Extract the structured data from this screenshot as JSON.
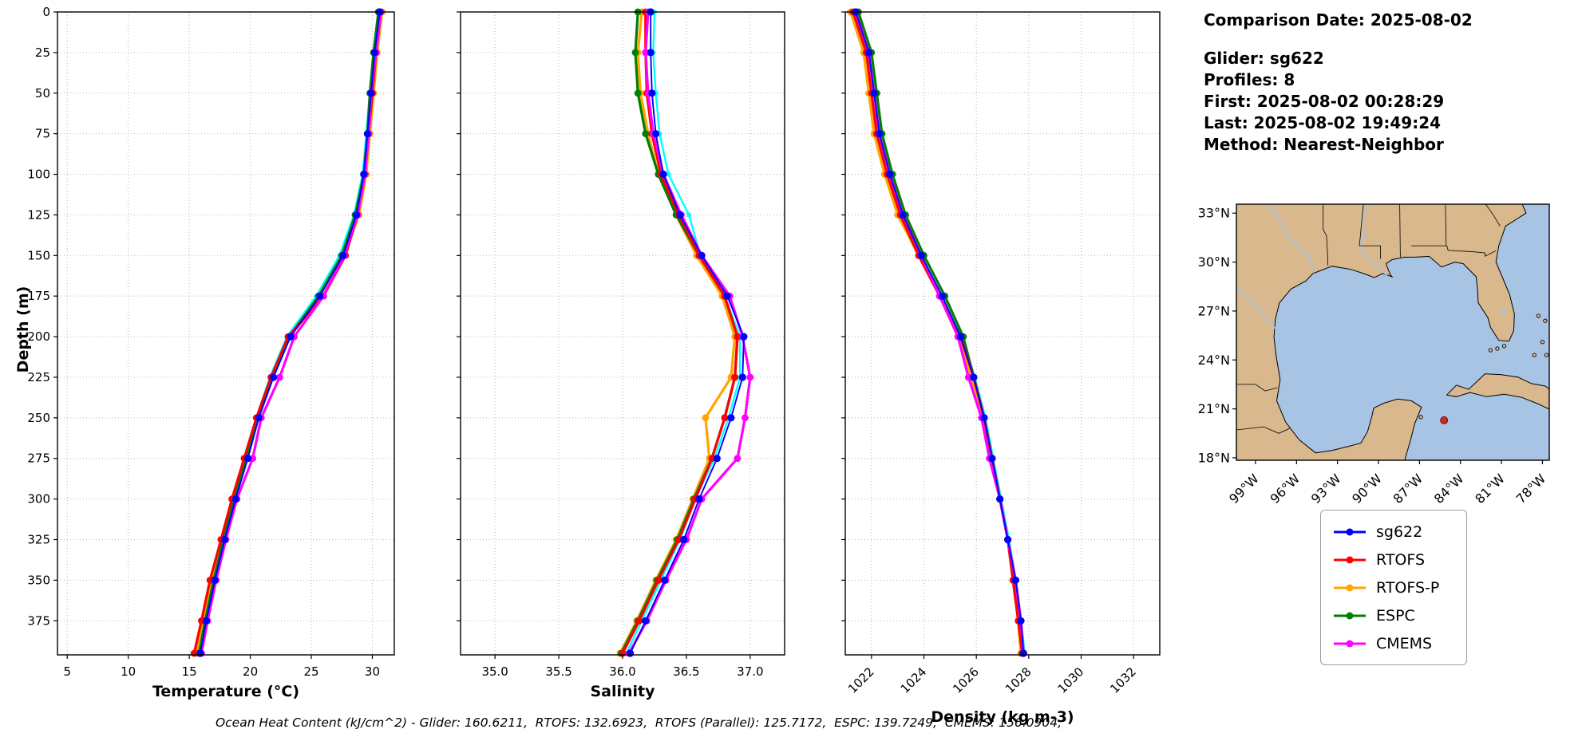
{
  "info": {
    "comparison_date": "Comparison Date: 2025-08-02",
    "glider": "Glider: sg622",
    "profiles": "Profiles: 8",
    "first": "First: 2025-08-02 00:28:29",
    "last": "Last: 2025-08-02 19:49:24",
    "method": "Method: Nearest-Neighbor"
  },
  "axes": {
    "depth_label": "Depth (m)"
  },
  "footer": {
    "text": "Ocean Heat Content (kJ/cm^2) - Glider: 160.6211,  RTOFS: 132.6923,  RTOFS (Parallel): 125.7172,  ESPC: 139.7249,  CMEMS: 156.0904,"
  },
  "legend": {
    "items": [
      {
        "label": "sg622",
        "color": "#0000ff"
      },
      {
        "label": "RTOFS",
        "color": "#ff0000"
      },
      {
        "label": "RTOFS-P",
        "color": "#ffa500"
      },
      {
        "label": "ESPC",
        "color": "#008000"
      },
      {
        "label": "CMEMS",
        "color": "#ff00ff"
      }
    ]
  },
  "map": {
    "water_color": "#a8c4e4",
    "land_color": "#d8b88c",
    "line_color": "#000000",
    "lat_ticks": [
      {
        "v": 33,
        "label": "33°N"
      },
      {
        "v": 30,
        "label": "30°N"
      },
      {
        "v": 27,
        "label": "27°N"
      },
      {
        "v": 24,
        "label": "24°N"
      },
      {
        "v": 21,
        "label": "21°N"
      },
      {
        "v": 18,
        "label": "18°N"
      }
    ],
    "lon_ticks": [
      {
        "v": -99,
        "label": "99°W"
      },
      {
        "v": -96,
        "label": "96°W"
      },
      {
        "v": -93,
        "label": "93°W"
      },
      {
        "v": -90,
        "label": "90°W"
      },
      {
        "v": -87,
        "label": "87°W"
      },
      {
        "v": -84,
        "label": "84°W"
      },
      {
        "v": -81,
        "label": "81°W"
      },
      {
        "v": -78,
        "label": "78°W"
      }
    ],
    "marker": {
      "lon": -85.2,
      "lat": 20.3,
      "color": "#cc2a1e"
    }
  },
  "depth_axis": {
    "ylim": [
      0,
      396
    ],
    "ticks": [
      0,
      25,
      50,
      75,
      100,
      125,
      150,
      175,
      200,
      225,
      250,
      275,
      300,
      325,
      350,
      375
    ],
    "labels": [
      "0",
      "25",
      "50",
      "75",
      "100",
      "125",
      "150",
      "175",
      "200",
      "225",
      "250",
      "275",
      "300",
      "325",
      "350",
      "375"
    ]
  },
  "chart_data": [
    {
      "id": "temperature",
      "type": "line",
      "xlabel": "Temperature (°C)",
      "xlim": [
        4.2,
        31.8
      ],
      "xticks": [
        5,
        10,
        15,
        20,
        25,
        30
      ],
      "xtick_labels": [
        "5",
        "10",
        "15",
        "20",
        "25",
        "30"
      ],
      "depths": [
        0,
        25,
        50,
        75,
        100,
        125,
        150,
        175,
        200,
        225,
        250,
        275,
        300,
        325,
        350,
        375,
        395
      ],
      "series": [
        {
          "name": "glider-profiles",
          "color": "#00ffff",
          "values": [
            30.6,
            30.1,
            29.8,
            29.5,
            29.2,
            28.5,
            27.3,
            25.4,
            23.0,
            21.6,
            20.5,
            19.6,
            18.6,
            17.7,
            16.9,
            16.2,
            15.7
          ]
        },
        {
          "name": "RTOFS-P",
          "color": "#ffa500",
          "values": [
            30.8,
            30.4,
            30.1,
            29.8,
            29.5,
            28.9,
            27.7,
            25.9,
            23.2,
            21.8,
            20.6,
            19.6,
            18.6,
            17.7,
            16.8,
            16.1,
            15.6
          ]
        },
        {
          "name": "ESPC",
          "color": "#008000",
          "values": [
            30.5,
            30.1,
            29.8,
            29.6,
            29.3,
            28.6,
            27.5,
            25.6,
            23.2,
            21.8,
            20.6,
            19.7,
            18.7,
            17.8,
            17.0,
            16.3,
            15.8
          ]
        },
        {
          "name": "RTOFS",
          "color": "#ff0000",
          "values": [
            30.7,
            30.3,
            30.0,
            29.7,
            29.4,
            28.8,
            27.8,
            26.0,
            23.1,
            21.7,
            20.5,
            19.5,
            18.5,
            17.6,
            16.7,
            16.0,
            15.4
          ]
        },
        {
          "name": "CMEMS",
          "color": "#ff00ff",
          "values": [
            30.7,
            30.3,
            29.9,
            29.7,
            29.4,
            28.8,
            27.7,
            26.0,
            23.6,
            22.4,
            20.9,
            20.2,
            18.9,
            18.0,
            17.2,
            16.5,
            16.0
          ]
        },
        {
          "name": "sg622",
          "color": "#0000ff",
          "values": [
            30.6,
            30.2,
            29.9,
            29.6,
            29.3,
            28.7,
            27.6,
            25.7,
            23.3,
            21.9,
            20.7,
            19.8,
            18.8,
            17.9,
            17.1,
            16.4,
            15.9
          ]
        }
      ]
    },
    {
      "id": "salinity",
      "type": "line",
      "xlabel": "Salinity",
      "xlim": [
        34.73,
        37.27
      ],
      "xticks": [
        35.0,
        35.5,
        36.0,
        36.5,
        37.0
      ],
      "xtick_labels": [
        "35.0",
        "35.5",
        "36.0",
        "36.5",
        "37.0"
      ],
      "depths": [
        0,
        25,
        50,
        75,
        100,
        125,
        150,
        175,
        200,
        225,
        250,
        275,
        300,
        325,
        350,
        375,
        395
      ],
      "series": [
        {
          "name": "glider-profiles",
          "color": "#00ffff",
          "values": [
            36.25,
            36.24,
            36.26,
            36.29,
            36.36,
            36.52,
            36.61,
            36.8,
            36.92,
            36.92,
            36.83,
            36.72,
            36.57,
            36.45,
            36.3,
            36.15,
            36.03
          ]
        },
        {
          "name": "RTOFS-P",
          "color": "#ffa500",
          "values": [
            36.15,
            36.12,
            36.14,
            36.2,
            36.28,
            36.42,
            36.58,
            36.78,
            36.88,
            36.85,
            36.65,
            36.68,
            36.55,
            36.42,
            36.26,
            36.11,
            35.98
          ]
        },
        {
          "name": "ESPC",
          "color": "#008000",
          "values": [
            36.12,
            36.1,
            36.12,
            36.18,
            36.28,
            36.42,
            36.6,
            36.8,
            36.9,
            36.88,
            36.8,
            36.7,
            36.56,
            36.43,
            36.27,
            36.12,
            35.99
          ]
        },
        {
          "name": "RTOFS",
          "color": "#ff0000",
          "values": [
            36.18,
            36.18,
            36.19,
            36.23,
            36.3,
            36.44,
            36.6,
            36.8,
            36.9,
            36.88,
            36.8,
            36.7,
            36.57,
            36.44,
            36.28,
            36.13,
            36.0
          ]
        },
        {
          "name": "CMEMS",
          "color": "#ff00ff",
          "values": [
            36.2,
            36.18,
            36.2,
            36.24,
            36.32,
            36.46,
            36.62,
            36.84,
            36.94,
            37.0,
            36.96,
            36.9,
            36.62,
            36.5,
            36.34,
            36.19,
            36.05
          ]
        },
        {
          "name": "sg622",
          "color": "#0000ff",
          "values": [
            36.22,
            36.22,
            36.23,
            36.26,
            36.32,
            36.45,
            36.62,
            36.82,
            36.95,
            36.94,
            36.85,
            36.74,
            36.6,
            36.48,
            36.33,
            36.18,
            36.06
          ]
        }
      ]
    },
    {
      "id": "density",
      "type": "line",
      "xlabel": "Density (kg m-3)",
      "xlim": [
        1021.0,
        1033.0
      ],
      "xticks": [
        1022,
        1024,
        1026,
        1028,
        1030,
        1032
      ],
      "xtick_labels": [
        "1022",
        "1024",
        "1026",
        "1028",
        "1030",
        "1032"
      ],
      "depths": [
        0,
        25,
        50,
        75,
        100,
        125,
        150,
        175,
        200,
        225,
        250,
        275,
        300,
        325,
        350,
        375,
        395
      ],
      "series": [
        {
          "name": "glider-profiles",
          "color": "#00ffff",
          "values": [
            1021.5,
            1021.95,
            1022.15,
            1022.35,
            1022.75,
            1023.3,
            1024.0,
            1024.8,
            1025.45,
            1025.95,
            1026.35,
            1026.65,
            1026.95,
            1027.25,
            1027.5,
            1027.7,
            1027.85
          ]
        },
        {
          "name": "RTOFS-P",
          "color": "#ffa500",
          "values": [
            1021.2,
            1021.7,
            1021.9,
            1022.1,
            1022.5,
            1023.0,
            1023.8,
            1024.6,
            1025.3,
            1025.8,
            1026.2,
            1026.6,
            1026.9,
            1027.2,
            1027.4,
            1027.6,
            1027.7
          ]
        },
        {
          "name": "ESPC",
          "color": "#008000",
          "values": [
            1021.5,
            1022.0,
            1022.2,
            1022.4,
            1022.8,
            1023.3,
            1024.0,
            1024.8,
            1025.5,
            1025.9,
            1026.3,
            1026.6,
            1026.9,
            1027.2,
            1027.5,
            1027.7,
            1027.8
          ]
        },
        {
          "name": "RTOFS",
          "color": "#ff0000",
          "values": [
            1021.3,
            1021.8,
            1022.0,
            1022.2,
            1022.6,
            1023.1,
            1023.8,
            1024.6,
            1025.4,
            1025.9,
            1026.3,
            1026.6,
            1026.9,
            1027.2,
            1027.4,
            1027.6,
            1027.75
          ]
        },
        {
          "name": "CMEMS",
          "color": "#ff00ff",
          "values": [
            1021.4,
            1021.9,
            1022.1,
            1022.3,
            1022.7,
            1023.2,
            1023.9,
            1024.6,
            1025.3,
            1025.7,
            1026.2,
            1026.5,
            1026.9,
            1027.2,
            1027.5,
            1027.7,
            1027.8
          ]
        },
        {
          "name": "sg622",
          "color": "#0000ff",
          "values": [
            1021.4,
            1021.9,
            1022.1,
            1022.3,
            1022.7,
            1023.2,
            1023.9,
            1024.7,
            1025.4,
            1025.9,
            1026.3,
            1026.6,
            1026.9,
            1027.2,
            1027.5,
            1027.7,
            1027.8
          ]
        }
      ]
    }
  ]
}
